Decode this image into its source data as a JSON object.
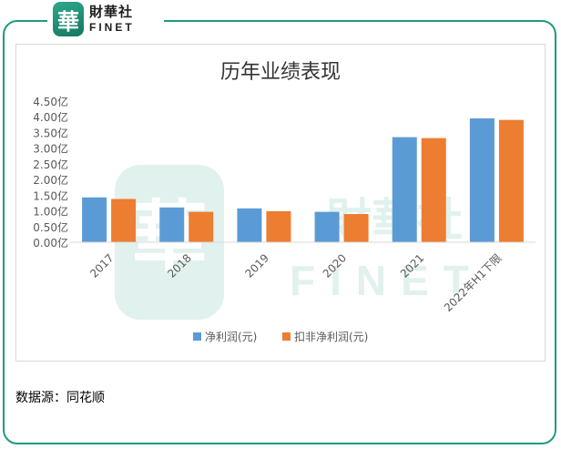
{
  "brand": {
    "seal_char": "華",
    "name_cn": "財華社",
    "name_en": "FINET",
    "accent": "#1f9a7f"
  },
  "source": "数据源：同花顺",
  "chart_data": {
    "type": "bar",
    "title": "历年业绩表现",
    "categories": [
      "2017",
      "2018",
      "2019",
      "2020",
      "2021",
      "2022年H1下限"
    ],
    "series": [
      {
        "name": "净利润(元)",
        "color": "#5b9bd5",
        "values": [
          1.43,
          1.11,
          1.08,
          0.97,
          3.35,
          3.95
        ]
      },
      {
        "name": "扣非净利润(元)",
        "color": "#ed7d31",
        "values": [
          1.38,
          0.97,
          0.99,
          0.9,
          3.32,
          3.9
        ]
      }
    ],
    "y_ticks": [
      "0.00亿",
      "0.50亿",
      "1.00亿",
      "1.50亿",
      "2.00亿",
      "2.50亿",
      "3.00亿",
      "3.50亿",
      "4.00亿",
      "4.50亿"
    ],
    "ylim": [
      0,
      4.5
    ],
    "unit": "亿",
    "grid": false,
    "legend_position": "bottom"
  }
}
